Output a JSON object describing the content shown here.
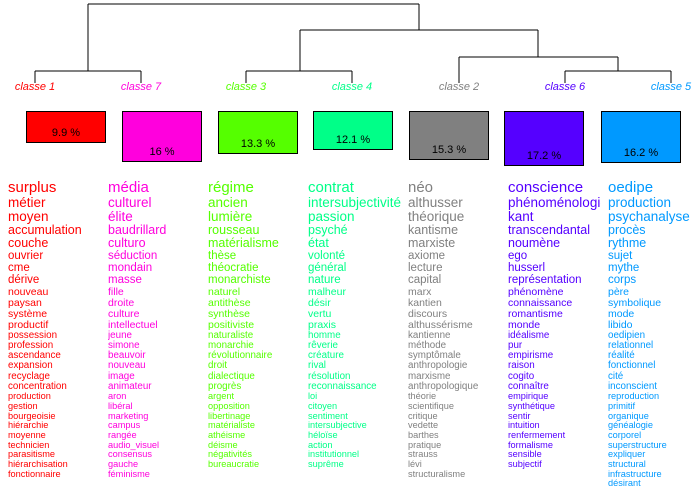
{
  "classes": [
    {
      "label": "classe 1",
      "percent": "9.9 %",
      "color": "#ff0000",
      "percent_value": 9.9,
      "words": [
        "surplus",
        "métier",
        "moyen",
        "accumulation",
        "couche",
        "ouvrier",
        "cme",
        "dérive",
        "nouveau",
        "paysan",
        "système",
        "productif",
        "possession",
        "profession",
        "ascendance",
        "expansion",
        "recyclage",
        "concentration",
        "production",
        "gestion",
        "bourgeoisie",
        "hiérarchie",
        "moyenne",
        "technicien",
        "parasitisme",
        "hiérarchisation",
        "fonctionnaire"
      ]
    },
    {
      "label": "classe 7",
      "percent": "16 %",
      "color": "#ff00dd",
      "percent_value": 16,
      "words": [
        "média",
        "culturel",
        "élite",
        "baudrillard",
        "culturo",
        "séduction",
        "mondain",
        "masse",
        "fille",
        "droite",
        "culture",
        "intellectuel",
        "jeune",
        "simone",
        "beauvoir",
        "nouveau",
        "image",
        "animateur",
        "aron",
        "libéral",
        "marketing",
        "campus",
        "rangée",
        "audio_visuel",
        "consensus",
        "gauche",
        "féminisme"
      ]
    },
    {
      "label": "classe 3",
      "percent": "13.3 %",
      "color": "#55ff00",
      "percent_value": 13.3,
      "words": [
        "régime",
        "ancien",
        "lumière",
        "rousseau",
        "matérialisme",
        "thèse",
        "théocratie",
        "monarchiste",
        "naturel",
        "antithèse",
        "synthèse",
        "positiviste",
        "naturaliste",
        "monarchie",
        "révolutionnaire",
        "droit",
        "dialectique",
        "progrès",
        "argent",
        "opposition",
        "libertinage",
        "matérialiste",
        "athéisme",
        "déisme",
        "négativités",
        "bureaucratie"
      ]
    },
    {
      "label": "classe 4",
      "percent": "12.1 %",
      "color": "#00ff88",
      "percent_value": 12.1,
      "words": [
        "contrat",
        "intersubjectivité",
        "passion",
        "psyché",
        "état",
        "volonté",
        "général",
        "nature",
        "malheur",
        "désir",
        "vertu",
        "praxis",
        "homme",
        "rêverie",
        "créature",
        "rival",
        "résolution",
        "reconnaissance",
        "loi",
        "citoyen",
        "sentiment",
        "intersubjective",
        "héloïse",
        "action",
        "institutionnel",
        "suprême"
      ]
    },
    {
      "label": "classe 2",
      "percent": "15.3 %",
      "color": "#808080",
      "percent_value": 15.3,
      "words": [
        "néo",
        "althusser",
        "théorique",
        "kantisme",
        "marxiste",
        "axiome",
        "lecture",
        "capital",
        "marx",
        "kantien",
        "discours",
        "althussérisme",
        "kantienne",
        "méthode",
        "symptômale",
        "anthropologie",
        "marxisme",
        "anthropologique",
        "théorie",
        "scientifique",
        "critique",
        "vedette",
        "barthes",
        "pratique",
        "strauss",
        "lévi",
        "structuralisme"
      ]
    },
    {
      "label": "classe 6",
      "percent": "17.2 %",
      "color": "#5500ff",
      "percent_value": 17.2,
      "words": [
        "conscience",
        "phénoménologie",
        "kant",
        "transcendantal",
        "noumène",
        "ego",
        "husserl",
        "représentation",
        "phénomène",
        "connaissance",
        "romantisme",
        "monde",
        "idéalisme",
        "pur",
        "empirisme",
        "raison",
        "cogito",
        "connaître",
        "empirique",
        "synthétique",
        "sentir",
        "intuition",
        "renfermement",
        "formalisme",
        "sensible",
        "subjectif"
      ]
    },
    {
      "label": "classe 5",
      "percent": "16.2 %",
      "color": "#0099ff",
      "percent_value": 16.2,
      "words": [
        "oedipe",
        "production",
        "psychanalyse",
        "procès",
        "rythme",
        "sujet",
        "mythe",
        "corps",
        "père",
        "symbolique",
        "mode",
        "libido",
        "oedipien",
        "relationnel",
        "réalité",
        "fonctionnel",
        "cité",
        "inconscient",
        "reproduction",
        "primitif",
        "organique",
        "généalogie",
        "corporel",
        "superstructure",
        "expliquer",
        "structural",
        "infrastructure",
        "désirant"
      ]
    }
  ]
}
